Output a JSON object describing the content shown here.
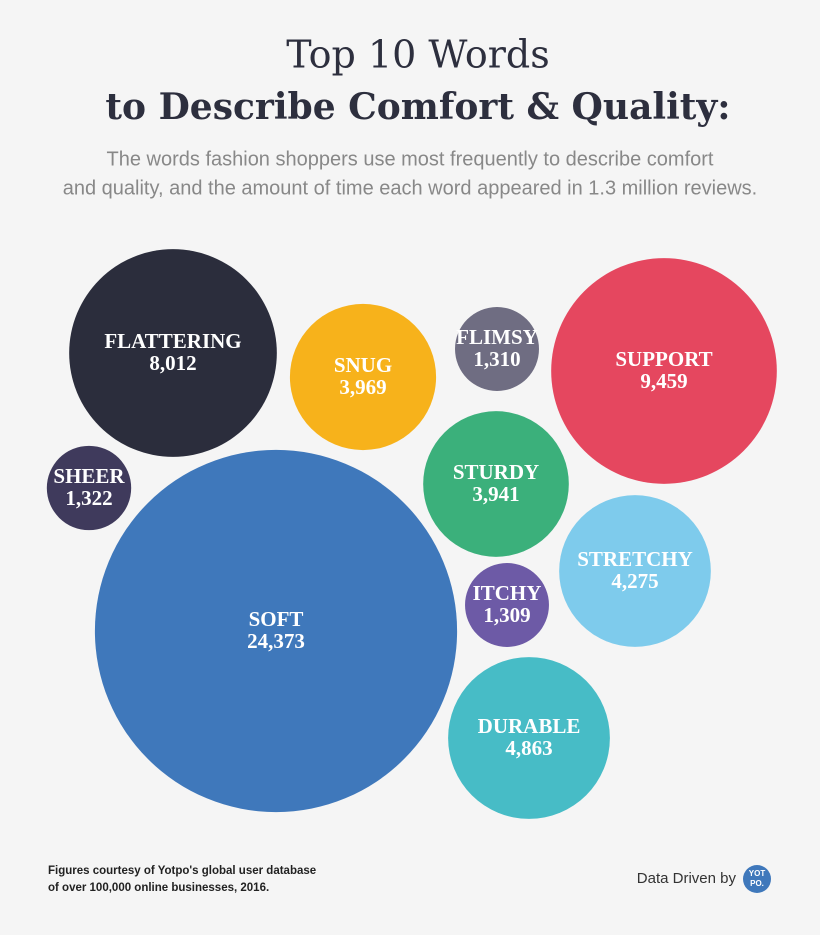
{
  "chart_data": {
    "type": "bubble",
    "title": "Top 10 Words",
    "subtitle": "to Describe Comfort & Quality:",
    "description": [
      "The words fashion shoppers use most frequently to describe comfort",
      "and quality, and the amount of time each word appeared in 1.3 million reviews."
    ],
    "categories": [
      "FLATTERING",
      "SNUG",
      "FLIMSY",
      "SUPPORT",
      "SHEER",
      "STURDY",
      "SOFT",
      "STRETCHY",
      "ITCHY",
      "DURABLE"
    ],
    "values": [
      8012,
      3969,
      1310,
      9459,
      1322,
      3941,
      24373,
      4275,
      1309,
      4863
    ],
    "value_labels": [
      "8,012",
      "3,969",
      "1,310",
      "9,459",
      "1,322",
      "3,941",
      "24,373",
      "4,275",
      "1,309",
      "4,863"
    ],
    "colors": [
      "#2b2d3c",
      "#f7b21b",
      "#6f6d82",
      "#e5475f",
      "#3f3a5c",
      "#3bb07b",
      "#3f78bb",
      "#7ecbec",
      "#6d5aa6",
      "#47bcc6"
    ],
    "source": [
      "Figures courtesy of Yotpo's global user database",
      "of over 100,000 online businesses, 2016."
    ],
    "credit": "Data Driven by",
    "logo": [
      "YOT",
      "PO."
    ]
  }
}
